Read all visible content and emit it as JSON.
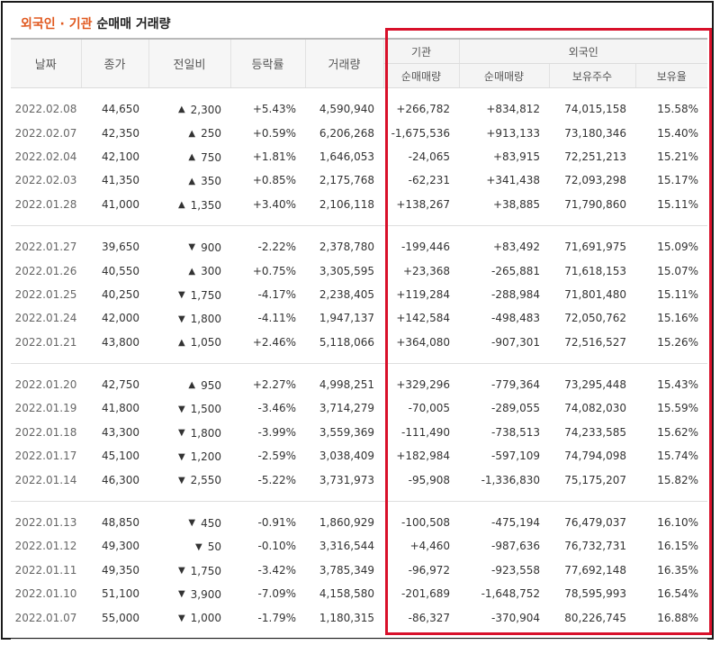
{
  "title": {
    "highlight": "외국인 · 기관",
    "rest": "순매매 거래량"
  },
  "headers": {
    "date": "날짜",
    "close": "종가",
    "change": "전일비",
    "rate": "등락률",
    "volume": "거래량",
    "institution": "기관",
    "foreign": "외국인",
    "inst_net": "순매매량",
    "frgn_net": "순매매량",
    "frgn_holdings": "보유주수",
    "frgn_ratio": "보유율"
  },
  "colors": {
    "up": "#c8101f",
    "down": "#1a5cb4",
    "title_accent": "#e0581e",
    "highlight_border": "#d8102a"
  },
  "rows": [
    {
      "date": "2022.02.08",
      "close": "44,650",
      "dir": "up",
      "change": "2,300",
      "rate": "+5.43%",
      "volume": "4,590,940",
      "inst": "+266,782",
      "frgn": "+834,812",
      "holdings": "74,015,158",
      "ratio": "15.58%"
    },
    {
      "date": "2022.02.07",
      "close": "42,350",
      "dir": "up",
      "change": "250",
      "rate": "+0.59%",
      "volume": "6,206,268",
      "inst": "-1,675,536",
      "frgn": "+913,133",
      "holdings": "73,180,346",
      "ratio": "15.40%"
    },
    {
      "date": "2022.02.04",
      "close": "42,100",
      "dir": "up",
      "change": "750",
      "rate": "+1.81%",
      "volume": "1,646,053",
      "inst": "-24,065",
      "frgn": "+83,915",
      "holdings": "72,251,213",
      "ratio": "15.21%"
    },
    {
      "date": "2022.02.03",
      "close": "41,350",
      "dir": "up",
      "change": "350",
      "rate": "+0.85%",
      "volume": "2,175,768",
      "inst": "-62,231",
      "frgn": "+341,438",
      "holdings": "72,093,298",
      "ratio": "15.17%"
    },
    {
      "date": "2022.01.28",
      "close": "41,000",
      "dir": "up",
      "change": "1,350",
      "rate": "+3.40%",
      "volume": "2,106,118",
      "inst": "+138,267",
      "frgn": "+38,885",
      "holdings": "71,790,860",
      "ratio": "15.11%"
    },
    {
      "date": "2022.01.27",
      "close": "39,650",
      "dir": "down",
      "change": "900",
      "rate": "-2.22%",
      "volume": "2,378,780",
      "inst": "-199,446",
      "frgn": "+83,492",
      "holdings": "71,691,975",
      "ratio": "15.09%"
    },
    {
      "date": "2022.01.26",
      "close": "40,550",
      "dir": "up",
      "change": "300",
      "rate": "+0.75%",
      "volume": "3,305,595",
      "inst": "+23,368",
      "frgn": "-265,881",
      "holdings": "71,618,153",
      "ratio": "15.07%"
    },
    {
      "date": "2022.01.25",
      "close": "40,250",
      "dir": "down",
      "change": "1,750",
      "rate": "-4.17%",
      "volume": "2,238,405",
      "inst": "+119,284",
      "frgn": "-288,984",
      "holdings": "71,801,480",
      "ratio": "15.11%"
    },
    {
      "date": "2022.01.24",
      "close": "42,000",
      "dir": "down",
      "change": "1,800",
      "rate": "-4.11%",
      "volume": "1,947,137",
      "inst": "+142,584",
      "frgn": "-498,483",
      "holdings": "72,050,762",
      "ratio": "15.16%"
    },
    {
      "date": "2022.01.21",
      "close": "43,800",
      "dir": "up",
      "change": "1,050",
      "rate": "+2.46%",
      "volume": "5,118,066",
      "inst": "+364,080",
      "frgn": "-907,301",
      "holdings": "72,516,527",
      "ratio": "15.26%"
    },
    {
      "date": "2022.01.20",
      "close": "42,750",
      "dir": "up",
      "change": "950",
      "rate": "+2.27%",
      "volume": "4,998,251",
      "inst": "+329,296",
      "frgn": "-779,364",
      "holdings": "73,295,448",
      "ratio": "15.43%"
    },
    {
      "date": "2022.01.19",
      "close": "41,800",
      "dir": "down",
      "change": "1,500",
      "rate": "-3.46%",
      "volume": "3,714,279",
      "inst": "-70,005",
      "frgn": "-289,055",
      "holdings": "74,082,030",
      "ratio": "15.59%"
    },
    {
      "date": "2022.01.18",
      "close": "43,300",
      "dir": "down",
      "change": "1,800",
      "rate": "-3.99%",
      "volume": "3,559,369",
      "inst": "-111,490",
      "frgn": "-738,513",
      "holdings": "74,233,585",
      "ratio": "15.62%"
    },
    {
      "date": "2022.01.17",
      "close": "45,100",
      "dir": "down",
      "change": "1,200",
      "rate": "-2.59%",
      "volume": "3,038,409",
      "inst": "+182,984",
      "frgn": "-597,109",
      "holdings": "74,794,098",
      "ratio": "15.74%"
    },
    {
      "date": "2022.01.14",
      "close": "46,300",
      "dir": "down",
      "change": "2,550",
      "rate": "-5.22%",
      "volume": "3,731,973",
      "inst": "-95,908",
      "frgn": "-1,336,830",
      "holdings": "75,175,207",
      "ratio": "15.82%"
    },
    {
      "date": "2022.01.13",
      "close": "48,850",
      "dir": "down",
      "change": "450",
      "rate": "-0.91%",
      "volume": "1,860,929",
      "inst": "-100,508",
      "frgn": "-475,194",
      "holdings": "76,479,037",
      "ratio": "16.10%"
    },
    {
      "date": "2022.01.12",
      "close": "49,300",
      "dir": "down",
      "change": "50",
      "rate": "-0.10%",
      "volume": "3,316,544",
      "inst": "+4,460",
      "frgn": "-987,636",
      "holdings": "76,732,731",
      "ratio": "16.15%"
    },
    {
      "date": "2022.01.11",
      "close": "49,350",
      "dir": "down",
      "change": "1,750",
      "rate": "-3.42%",
      "volume": "3,785,349",
      "inst": "-96,972",
      "frgn": "-923,558",
      "holdings": "77,692,148",
      "ratio": "16.35%"
    },
    {
      "date": "2022.01.10",
      "close": "51,100",
      "dir": "down",
      "change": "3,900",
      "rate": "-7.09%",
      "volume": "4,158,580",
      "inst": "-201,689",
      "frgn": "-1,648,752",
      "holdings": "78,595,993",
      "ratio": "16.54%"
    },
    {
      "date": "2022.01.07",
      "close": "55,000",
      "dir": "down",
      "change": "1,000",
      "rate": "-1.79%",
      "volume": "1,180,315",
      "inst": "-86,327",
      "frgn": "-370,904",
      "holdings": "80,226,745",
      "ratio": "16.88%"
    }
  ]
}
